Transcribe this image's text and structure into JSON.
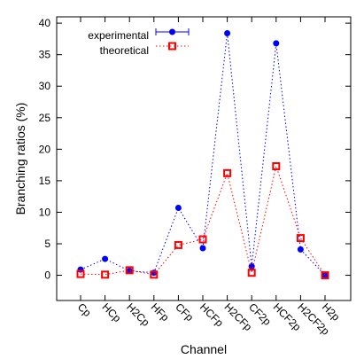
{
  "chart_data": {
    "type": "line",
    "xlabel": "Channel",
    "ylabel": "Branching ratios (%)",
    "categories": [
      "Cp",
      "HCp",
      "H2Cp",
      "HFp",
      "CFp",
      "HCFp",
      "H2CFp",
      "CF2p",
      "HCF2p",
      "H2CF2p",
      "H2p"
    ],
    "ylim": [
      -4,
      41
    ],
    "yticks": [
      0,
      5,
      10,
      15,
      20,
      25,
      30,
      35,
      40
    ],
    "grid": false,
    "legend_position": "top-left",
    "series": [
      {
        "name": "experimental",
        "color": "#0000ff",
        "marker": "filled-circle",
        "line_style": "dotted",
        "values": [
          0.9,
          2.6,
          0.7,
          0.4,
          10.7,
          4.3,
          38.4,
          1.4,
          36.8,
          4.1,
          0.0
        ]
      },
      {
        "name": "theoretical",
        "color": "#ff0000",
        "marker": "open-square",
        "line_style": "dotted",
        "values": [
          0.2,
          0.1,
          0.8,
          0.1,
          4.8,
          5.7,
          16.2,
          0.4,
          17.3,
          5.9,
          0.0
        ]
      }
    ]
  }
}
